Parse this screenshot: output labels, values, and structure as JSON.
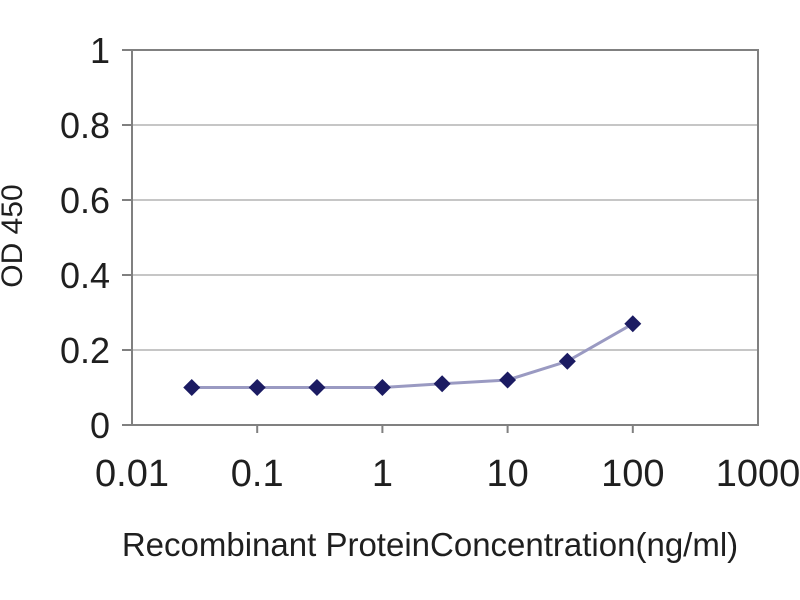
{
  "chart_data": {
    "type": "line",
    "title": "",
    "xlabel": "Recombinant ProteinConcentration(ng/ml)",
    "ylabel": "OD 450",
    "x_scale": "log",
    "xlim": [
      0.01,
      1000
    ],
    "ylim": [
      0,
      1
    ],
    "x_ticks": [
      0.01,
      0.1,
      1,
      10,
      100,
      1000
    ],
    "x_tick_labels": [
      "0.01",
      "0.1",
      "1",
      "10",
      "100",
      "1000"
    ],
    "y_ticks": [
      0,
      0.2,
      0.4,
      0.6,
      0.8,
      1
    ],
    "y_tick_labels": [
      "0",
      "0.2",
      "0.4",
      "0.6",
      "0.8",
      "1"
    ],
    "grid": "horizontal",
    "legend": "none",
    "x": [
      0.03,
      0.1,
      0.3,
      1,
      3,
      10,
      30,
      100
    ],
    "series": [
      {
        "name": "OD 450",
        "marker": "diamond",
        "values": [
          0.1,
          0.1,
          0.1,
          0.1,
          0.11,
          0.12,
          0.17,
          0.27
        ]
      }
    ],
    "colors": {
      "line": "#9a9ac2",
      "marker": "#1b1b62",
      "grid": "#b3b3b3",
      "axis_frame": "#808080",
      "text": "#1f1f1f",
      "background": "#ffffff"
    }
  }
}
